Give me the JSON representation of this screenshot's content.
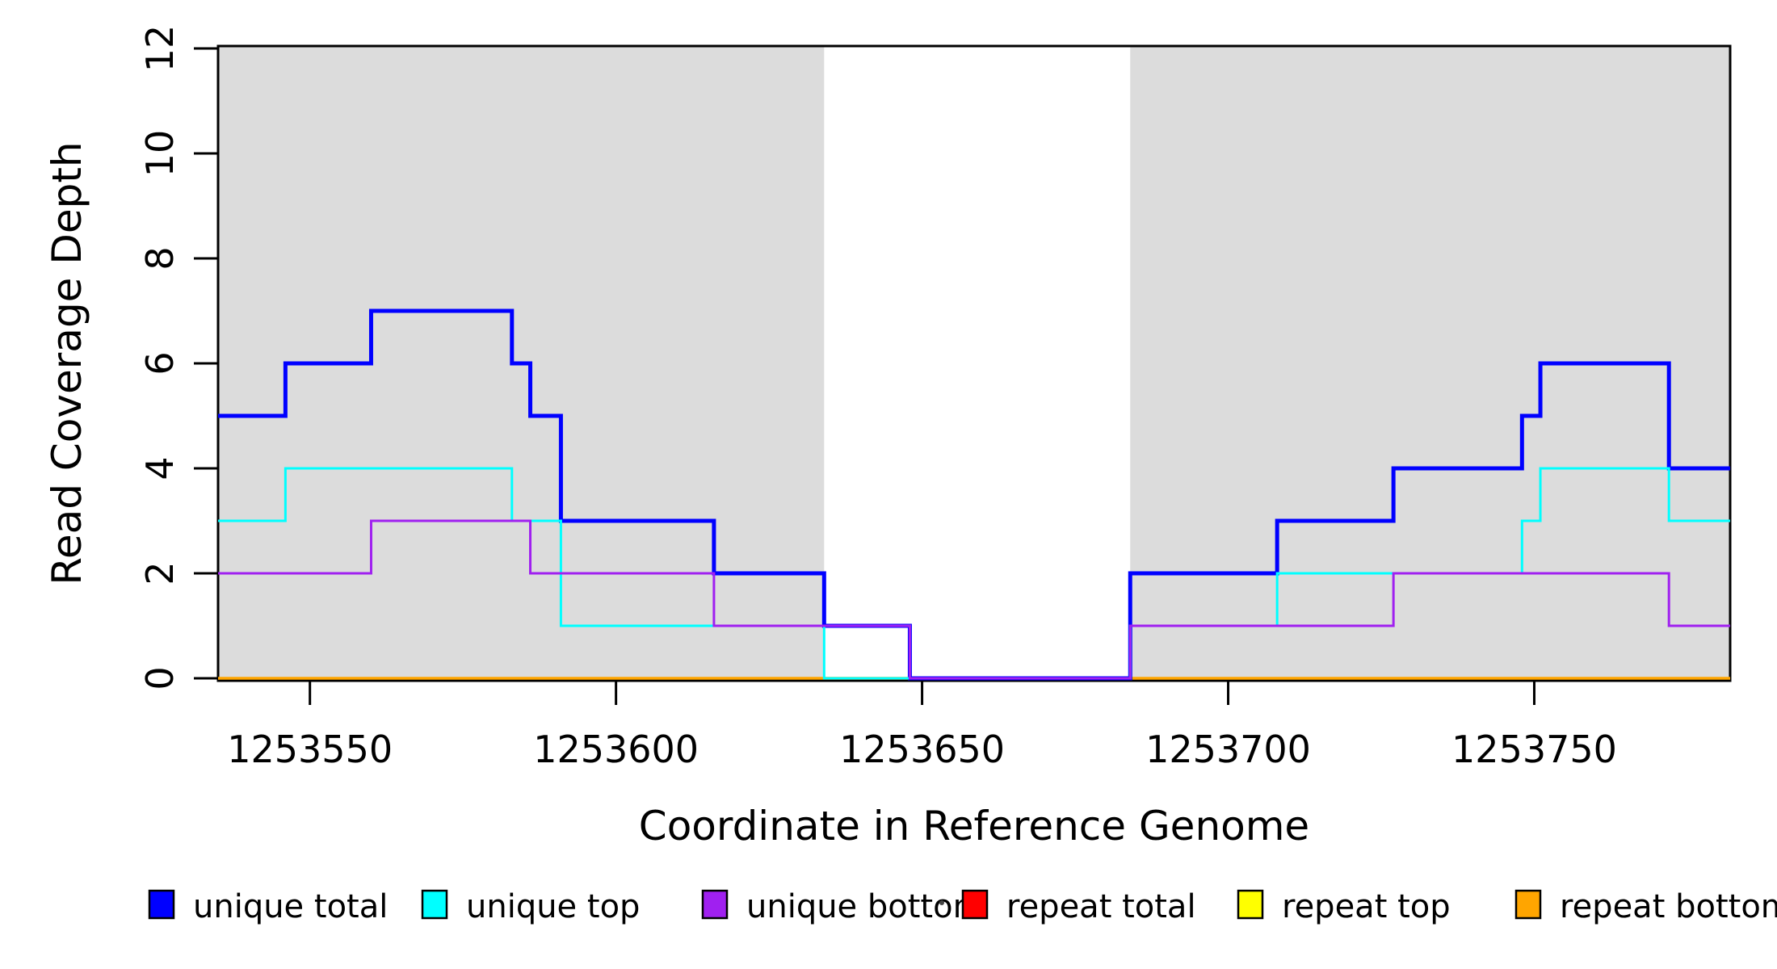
{
  "chart_data": {
    "type": "line",
    "subtype": "step-post",
    "title": "",
    "xlabel": "Coordinate in Reference Genome",
    "ylabel": "Read Coverage Depth",
    "xlim": [
      1253535,
      1253782
    ],
    "ylim": [
      0,
      12
    ],
    "x_ticks": [
      1253550,
      1253600,
      1253650,
      1253700,
      1253750
    ],
    "y_ticks": [
      0,
      2,
      4,
      6,
      8,
      10,
      12
    ],
    "grid": false,
    "shaded_regions": [
      {
        "x0": 1253535,
        "x1": 1253634,
        "color": "#DCDCDC"
      },
      {
        "x0": 1253684,
        "x1": 1253782,
        "color": "#DCDCDC"
      }
    ],
    "series": [
      {
        "name": "repeat total",
        "color": "#FF0000",
        "linewidth": 3,
        "points": [
          [
            1253535,
            0
          ]
        ]
      },
      {
        "name": "repeat top",
        "color": "#FFFF00",
        "linewidth": 3,
        "points": [
          [
            1253535,
            0
          ]
        ]
      },
      {
        "name": "repeat bottom",
        "color": "#FFA500",
        "linewidth": 3.5,
        "points": [
          [
            1253535,
            0
          ]
        ]
      },
      {
        "name": "unique total",
        "color": "#0000FF",
        "linewidth": 5,
        "points": [
          [
            1253535,
            5
          ],
          [
            1253546,
            6
          ],
          [
            1253560,
            7
          ],
          [
            1253583,
            6
          ],
          [
            1253586,
            5
          ],
          [
            1253591,
            3
          ],
          [
            1253616,
            2
          ],
          [
            1253634,
            1
          ],
          [
            1253648,
            0
          ],
          [
            1253684,
            2
          ],
          [
            1253708,
            3
          ],
          [
            1253727,
            4
          ],
          [
            1253748,
            5
          ],
          [
            1253751,
            6
          ],
          [
            1253772,
            4
          ]
        ]
      },
      {
        "name": "unique top",
        "color": "#00FFFF",
        "linewidth": 3,
        "points": [
          [
            1253535,
            3
          ],
          [
            1253546,
            4
          ],
          [
            1253583,
            3
          ],
          [
            1253591,
            1
          ],
          [
            1253634,
            0
          ],
          [
            1253684,
            1
          ],
          [
            1253708,
            2
          ],
          [
            1253748,
            3
          ],
          [
            1253751,
            4
          ],
          [
            1253772,
            3
          ]
        ]
      },
      {
        "name": "unique bottom",
        "color": "#A020F0",
        "linewidth": 3,
        "points": [
          [
            1253535,
            2
          ],
          [
            1253560,
            3
          ],
          [
            1253586,
            2
          ],
          [
            1253616,
            1
          ],
          [
            1253648,
            0
          ],
          [
            1253684,
            1
          ],
          [
            1253727,
            2
          ],
          [
            1253772,
            1
          ]
        ]
      }
    ],
    "legend": {
      "position": "bottom",
      "items": [
        {
          "label": "unique total",
          "color": "#0000FF"
        },
        {
          "label": "unique top",
          "color": "#00FFFF"
        },
        {
          "label": "unique bottom",
          "color": "#A020F0"
        },
        {
          "label": "repeat total",
          "color": "#FF0000"
        },
        {
          "label": "repeat top",
          "color": "#FFFF00"
        },
        {
          "label": "repeat bottom",
          "color": "#FFA500"
        }
      ]
    },
    "axis_color": "#000000",
    "background_color": "#FFFFFF"
  }
}
